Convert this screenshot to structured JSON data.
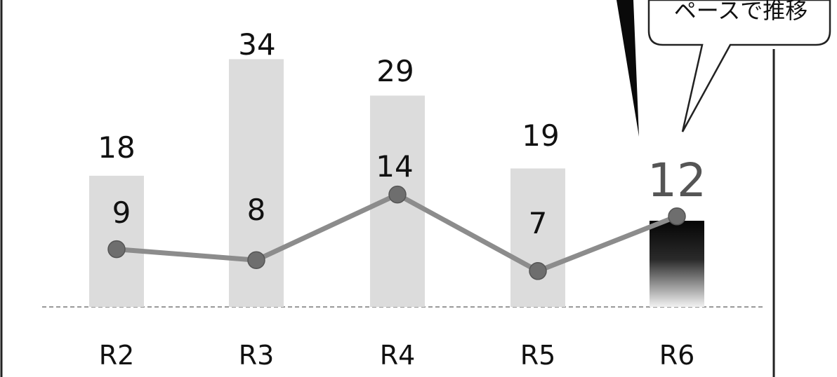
{
  "chart_data": {
    "type": "bar",
    "categories": [
      "R2",
      "R3",
      "R4",
      "R5",
      "R6"
    ],
    "series": [
      {
        "type": "bar",
        "values": [
          18,
          34,
          29,
          19,
          12
        ]
      },
      {
        "type": "line",
        "values": [
          9,
          8,
          14,
          7,
          12
        ]
      }
    ],
    "highlight_category": "R6",
    "annotation": "ペースで推移",
    "colors": {
      "bar": "#dcdcdc",
      "bar_highlight": "#111111",
      "line": "#8c8c8c",
      "marker": "#6e6e6e"
    }
  }
}
